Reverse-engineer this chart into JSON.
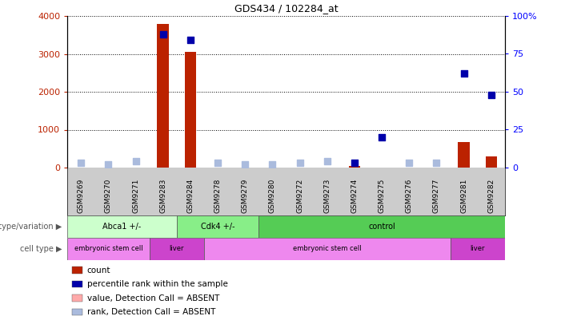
{
  "title": "GDS434 / 102284_at",
  "samples": [
    "GSM9269",
    "GSM9270",
    "GSM9271",
    "GSM9283",
    "GSM9284",
    "GSM9278",
    "GSM9279",
    "GSM9280",
    "GSM9272",
    "GSM9273",
    "GSM9274",
    "GSM9275",
    "GSM9276",
    "GSM9277",
    "GSM9281",
    "GSM9282"
  ],
  "count_values": [
    0,
    0,
    0,
    3800,
    3060,
    0,
    0,
    0,
    0,
    0,
    50,
    0,
    0,
    0,
    680,
    300
  ],
  "rank_values": [
    3,
    2,
    4,
    88,
    84,
    3,
    2,
    2,
    3,
    4,
    3,
    20,
    3,
    3,
    62,
    48
  ],
  "count_absent": [
    true,
    true,
    true,
    false,
    false,
    true,
    true,
    true,
    true,
    true,
    false,
    true,
    true,
    true,
    false,
    false
  ],
  "rank_absent": [
    true,
    true,
    true,
    false,
    false,
    true,
    true,
    true,
    true,
    true,
    false,
    false,
    true,
    true,
    false,
    false
  ],
  "ylim_left": [
    0,
    4000
  ],
  "ylim_right": [
    0,
    100
  ],
  "yticks_left": [
    0,
    1000,
    2000,
    3000,
    4000
  ],
  "yticks_right": [
    0,
    25,
    50,
    75,
    100
  ],
  "ytick_labels_right": [
    "0",
    "25",
    "50",
    "75",
    "100%"
  ],
  "color_count_present": "#bb2200",
  "color_count_absent": "#ffaaaa",
  "color_rank_present": "#0000aa",
  "color_rank_absent": "#aabbdd",
  "genotype_groups": [
    {
      "label": "Abca1 +/-",
      "start": 0,
      "end": 4,
      "color": "#ccffcc"
    },
    {
      "label": "Cdk4 +/-",
      "start": 4,
      "end": 7,
      "color": "#88ee88"
    },
    {
      "label": "control",
      "start": 7,
      "end": 16,
      "color": "#55cc55"
    }
  ],
  "celltype_groups": [
    {
      "label": "embryonic stem cell",
      "start": 0,
      "end": 3,
      "color": "#ee88ee"
    },
    {
      "label": "liver",
      "start": 3,
      "end": 5,
      "color": "#cc44cc"
    },
    {
      "label": "embryonic stem cell",
      "start": 5,
      "end": 14,
      "color": "#ee88ee"
    },
    {
      "label": "liver",
      "start": 14,
      "end": 16,
      "color": "#cc44cc"
    }
  ],
  "legend_items": [
    {
      "label": "count",
      "color": "#bb2200"
    },
    {
      "label": "percentile rank within the sample",
      "color": "#0000aa"
    },
    {
      "label": "value, Detection Call = ABSENT",
      "color": "#ffaaaa"
    },
    {
      "label": "rank, Detection Call = ABSENT",
      "color": "#aabbdd"
    }
  ],
  "bar_width": 0.5,
  "dot_size": 30,
  "row_label_genotype": "genotype/variation",
  "row_label_celltype": "cell type",
  "xlabel_bg_color": "#cccccc"
}
